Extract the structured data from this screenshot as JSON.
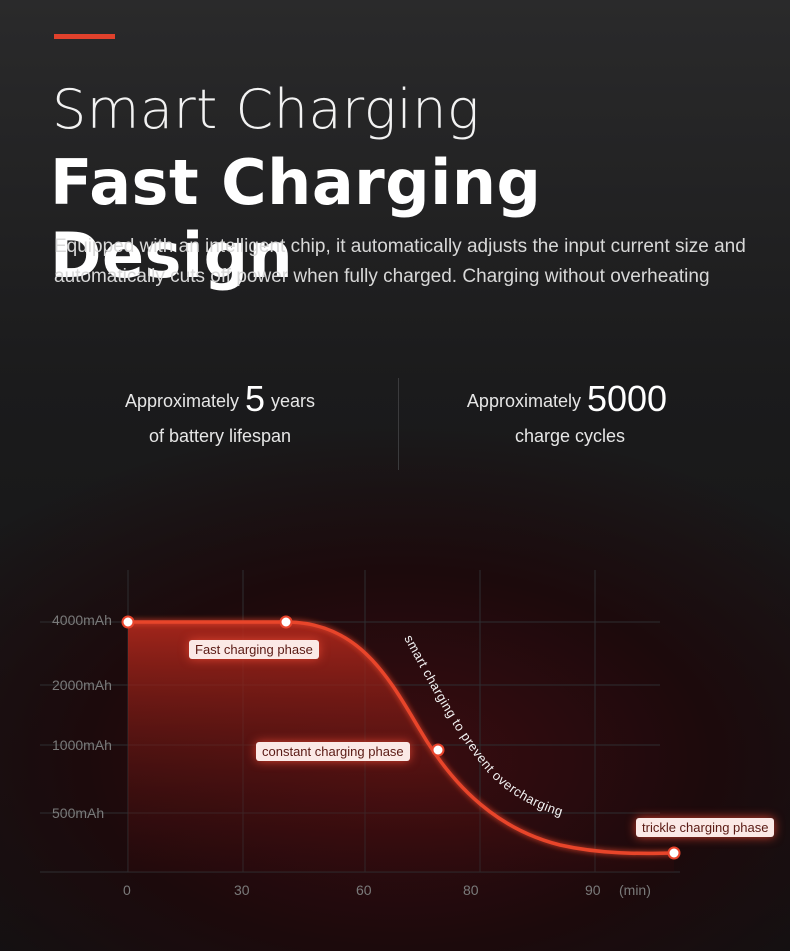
{
  "header": {
    "subtitle": "Smart Charging",
    "title": "Fast Charging Design",
    "description": "Equipped with an intelligent chip, it automatically adjusts the input current size and automatically cuts off power when fully charged. Charging without overheating"
  },
  "stats": [
    {
      "prefix": "Approximately",
      "value": "5",
      "suffix": "years",
      "line2": "of battery lifespan"
    },
    {
      "prefix": "Approximately",
      "value": "5000",
      "suffix": "",
      "line2": "charge cycles"
    }
  ],
  "colors": {
    "accent": "#e0412c",
    "curve": "#e8442c"
  },
  "chart_data": {
    "type": "area",
    "y_tick_labels": [
      "4000mAh",
      "2000mAh",
      "1000mAh",
      "500mAh"
    ],
    "x_tick_labels": [
      "0",
      "30",
      "60",
      "80",
      "90"
    ],
    "x_unit": "(min)",
    "phases": [
      {
        "label": "Fast charging phase"
      },
      {
        "label": "constant charging phase"
      },
      {
        "label": "trickle charging phase"
      }
    ],
    "curve_label": "smart charging to prevent overcharging",
    "grid": true
  }
}
